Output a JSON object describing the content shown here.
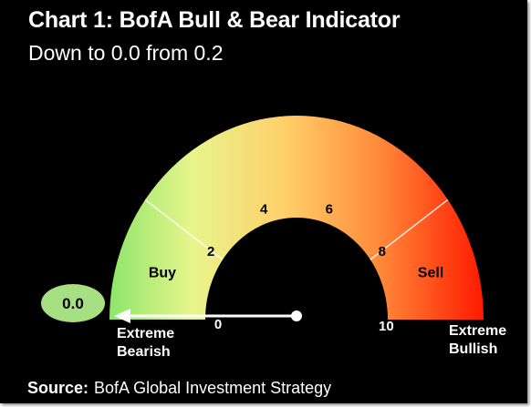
{
  "chart_data": {
    "type": "gauge",
    "title": "Chart 1: BofA Bull & Bear Indicator",
    "subtitle": "Down to 0.0 from 0.2",
    "scale_min": 0,
    "scale_max": 10,
    "ticks": [
      {
        "value": 0,
        "label": "0"
      },
      {
        "value": 2,
        "label": "2"
      },
      {
        "value": 4,
        "label": "4"
      },
      {
        "value": 6,
        "label": "6"
      },
      {
        "value": 8,
        "label": "8"
      },
      {
        "value": 10,
        "label": "10"
      }
    ],
    "zones": [
      {
        "label": "Buy",
        "from": 0,
        "to": 2
      },
      {
        "label": "Sell",
        "from": 8,
        "to": 10
      }
    ],
    "endpoint_labels": {
      "left": [
        "Extreme",
        "Bearish"
      ],
      "right": [
        "Extreme",
        "Bullish"
      ]
    },
    "current_value": 0.0,
    "current_value_label": "0.0",
    "previous_value": 0.2,
    "colors": {
      "background": "#000000",
      "bearish_end": "#8ee66a",
      "mid": "#ffd36a",
      "bullish_end": "#ff1a00",
      "value_bubble": "#a6e083",
      "needle": "#ffffff"
    }
  },
  "source": {
    "label": "Source:",
    "text": "BofA Global Investment Strategy"
  }
}
